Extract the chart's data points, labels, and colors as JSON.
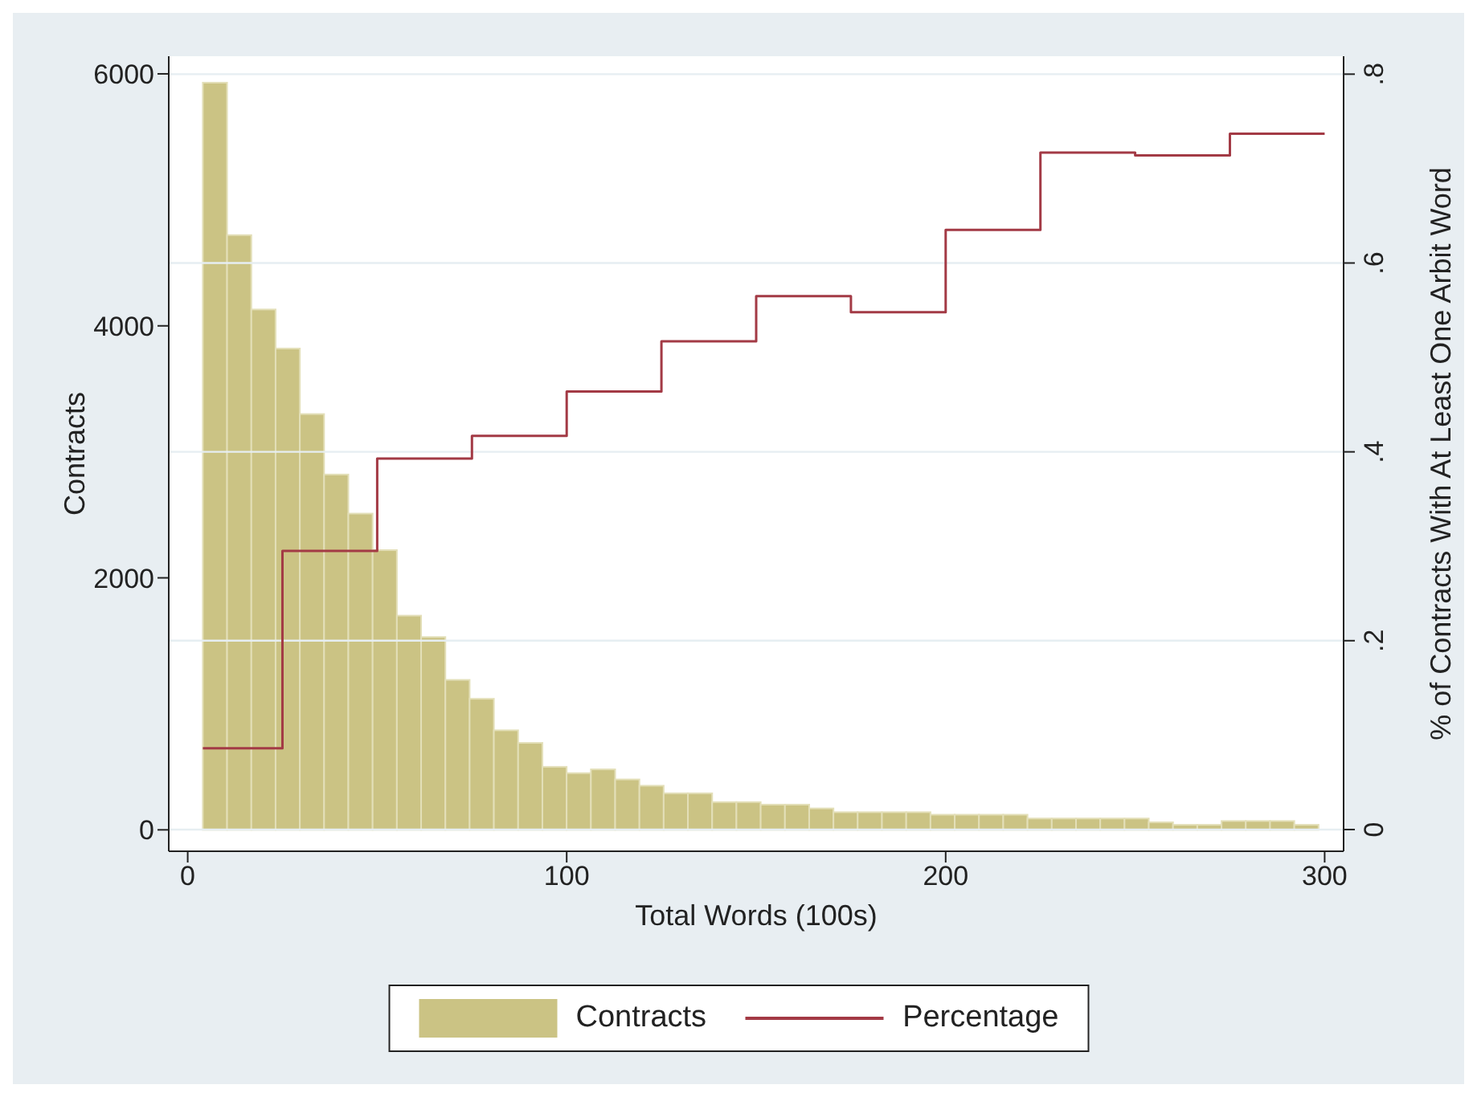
{
  "chart_data": {
    "type": "histogram",
    "xlabel": "Total Words (100s)",
    "ylabel": "Contracts",
    "y2label": "% of Contracts With At Least One Arbit Word",
    "bins": [
      4,
      10.4,
      16.8,
      23.2,
      29.6,
      36,
      42.4,
      48.8,
      55.2,
      61.6,
      68,
      74.4,
      80.8,
      87.2,
      93.6,
      100,
      106.4,
      112.8,
      119.2,
      125.6,
      132,
      138.4,
      144.8,
      151.2,
      157.6,
      164,
      170.4,
      176.8,
      183.2,
      189.6,
      196,
      202.4,
      208.8,
      215.2,
      221.6,
      228,
      234.4,
      240.8,
      247.2,
      253.6,
      260,
      266.4,
      272.8,
      279.2,
      285.6,
      292,
      298.4
    ],
    "series": [
      {
        "name": "Contracts",
        "color": "#cbc384",
        "values": [
          5930,
          4720,
          4130,
          3820,
          3300,
          2820,
          2510,
          2220,
          1700,
          1530,
          1190,
          1040,
          790,
          690,
          500,
          450,
          480,
          400,
          350,
          290,
          290,
          220,
          220,
          200,
          200,
          170,
          140,
          140,
          140,
          140,
          120,
          120,
          120,
          120,
          90,
          90,
          90,
          90,
          90,
          60,
          40,
          40,
          70,
          70,
          70,
          40
        ]
      },
      {
        "name": "Percentage",
        "type": "step",
        "axis": "y2",
        "color": "#a33a45",
        "x": [
          4,
          25,
          50,
          75,
          100,
          125,
          150,
          175,
          200,
          225,
          250,
          275,
          300
        ],
        "values": [
          0.086,
          0.295,
          0.393,
          0.417,
          0.464,
          0.517,
          0.565,
          0.548,
          0.635,
          0.717,
          0.714,
          0.737,
          0.737
        ]
      }
    ],
    "xlim": [
      -5,
      305
    ],
    "xticks": [
      0,
      100,
      200,
      300
    ],
    "ylim": [
      -170,
      6140
    ],
    "yticks": [
      0,
      2000,
      4000,
      6000
    ],
    "y2lim": [
      -0.023,
      0.819
    ],
    "y2ticks": [
      {
        "value": 0,
        "label": "0"
      },
      {
        "value": 0.2,
        "label": ".2"
      },
      {
        "value": 0.4,
        "label": ".4"
      },
      {
        "value": 0.6,
        "label": ".6"
      },
      {
        "value": 0.8,
        "label": ".8"
      }
    ],
    "grid": "y",
    "legend": "bottom"
  }
}
